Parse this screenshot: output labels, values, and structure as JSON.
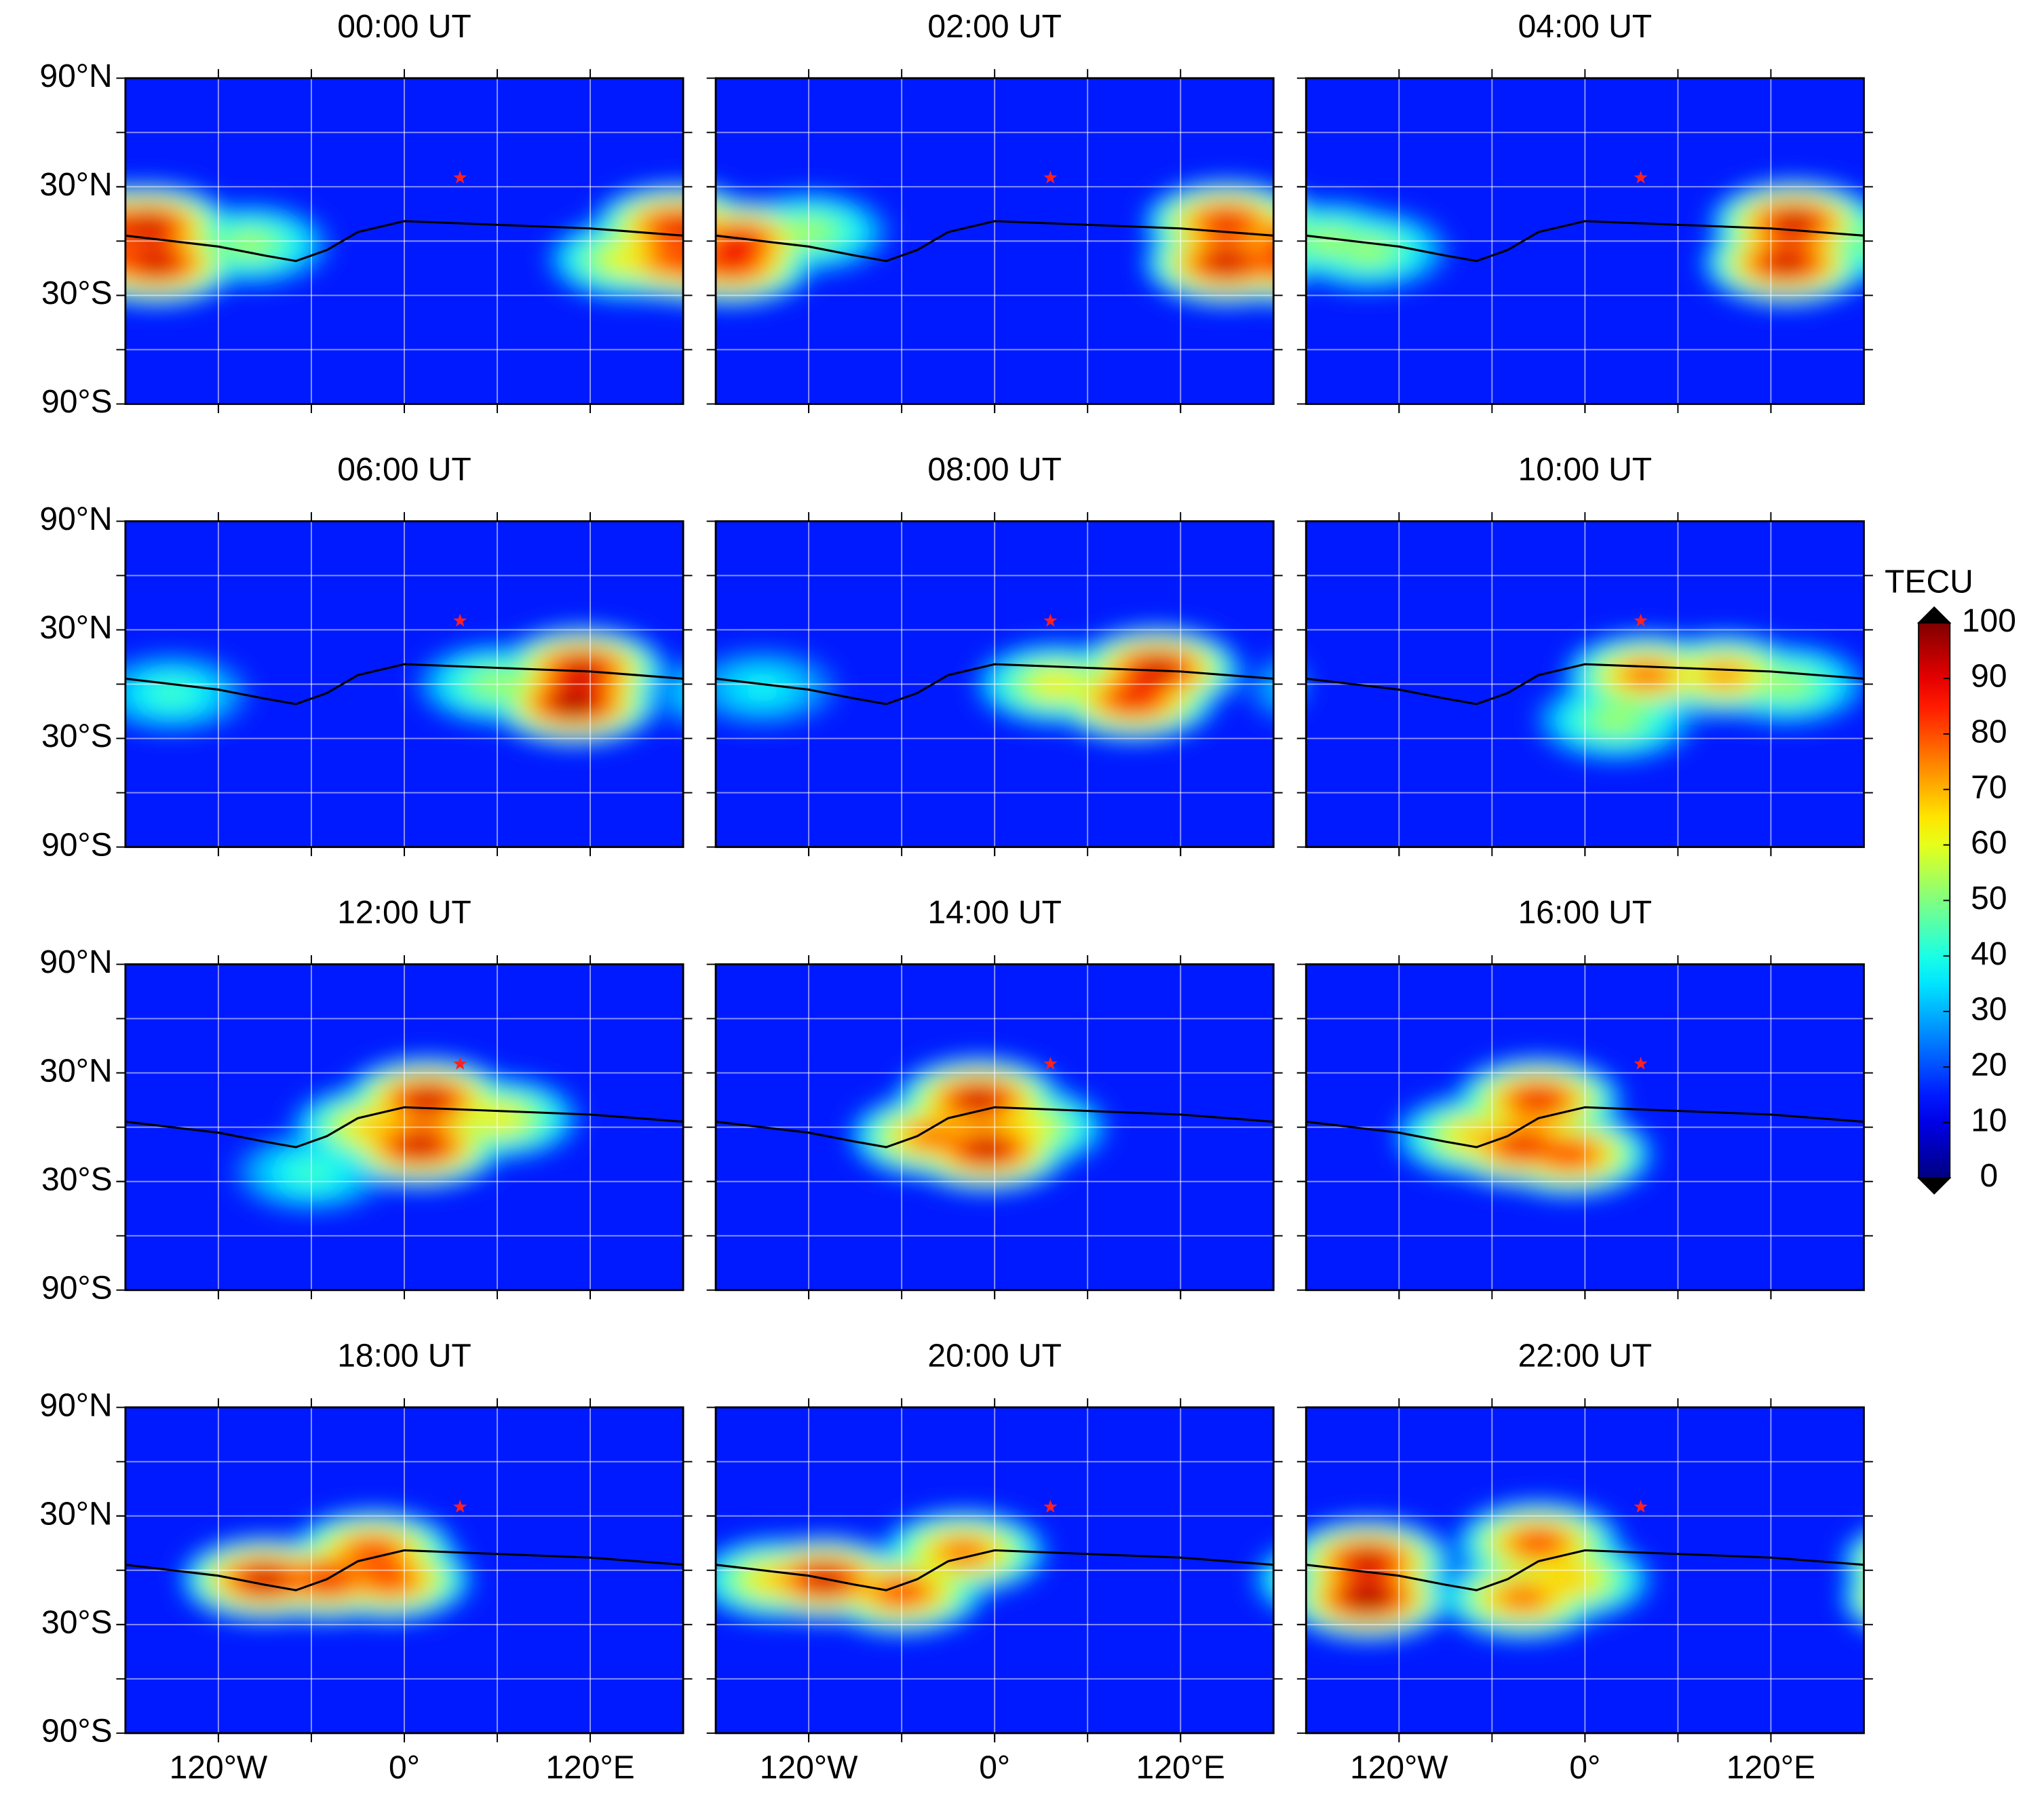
{
  "chart_data": {
    "type": "heatmap-map",
    "xlim": [
      -180,
      180
    ],
    "ylim": [
      -90,
      90
    ],
    "xticks": [
      {
        "value": -120,
        "label": "120°W"
      },
      {
        "value": 0,
        "label": "0°"
      },
      {
        "value": 120,
        "label": "120°E"
      }
    ],
    "yticks": [
      {
        "value": 90,
        "label": "90°N"
      },
      {
        "value": 30,
        "label": "30°N"
      },
      {
        "value": -30,
        "label": "30°S"
      },
      {
        "value": -90,
        "label": "90°S"
      }
    ],
    "grid": true,
    "background_tecu": 15,
    "colorbar": {
      "label": "TECU",
      "lim": [
        0,
        100
      ],
      "ticks": [
        0,
        10,
        20,
        30,
        40,
        50,
        60,
        70,
        80,
        90,
        100
      ],
      "colormap": "jet"
    },
    "event_location": {
      "lon": 36,
      "lat": 35,
      "color": "#ff2020"
    },
    "magnetic_equator": {
      "lon": [
        -180,
        -120,
        -90,
        -70,
        -50,
        -30,
        0,
        60,
        120,
        180
      ],
      "lat": [
        3,
        -3,
        -8,
        -11,
        -5,
        5,
        11,
        9,
        7,
        3
      ]
    },
    "panels": [
      {
        "title": "00:00 UT",
        "peaks": [
          {
            "lon": -165,
            "lat": 8,
            "value": 95
          },
          {
            "lon": -160,
            "lat": -12,
            "value": 95
          },
          {
            "lon": 175,
            "lat": 8,
            "value": 90
          },
          {
            "lon": 175,
            "lat": -10,
            "value": 85
          },
          {
            "lon": -100,
            "lat": -2,
            "value": 55
          },
          {
            "lon": 145,
            "lat": -10,
            "value": 65
          }
        ]
      },
      {
        "title": "02:00 UT",
        "peaks": [
          {
            "lon": -165,
            "lat": 0,
            "value": 90
          },
          {
            "lon": -170,
            "lat": -12,
            "value": 90
          },
          {
            "lon": 150,
            "lat": 10,
            "value": 90
          },
          {
            "lon": 150,
            "lat": -12,
            "value": 95
          },
          {
            "lon": -120,
            "lat": 5,
            "value": 55
          }
        ]
      },
      {
        "title": "04:00 UT",
        "peaks": [
          {
            "lon": 135,
            "lat": 10,
            "value": 95
          },
          {
            "lon": 130,
            "lat": -12,
            "value": 95
          },
          {
            "lon": -165,
            "lat": 0,
            "value": 55
          },
          {
            "lon": -140,
            "lat": -5,
            "value": 55
          }
        ]
      },
      {
        "title": "06:00 UT",
        "peaks": [
          {
            "lon": 115,
            "lat": 8,
            "value": 95
          },
          {
            "lon": 110,
            "lat": -10,
            "value": 100
          },
          {
            "lon": 60,
            "lat": 0,
            "value": 55
          },
          {
            "lon": -150,
            "lat": -5,
            "value": 45
          }
        ]
      },
      {
        "title": "08:00 UT",
        "peaks": [
          {
            "lon": 105,
            "lat": 8,
            "value": 95
          },
          {
            "lon": 90,
            "lat": -8,
            "value": 90
          },
          {
            "lon": 40,
            "lat": 0,
            "value": 65
          },
          {
            "lon": -150,
            "lat": -2,
            "value": 40
          }
        ]
      },
      {
        "title": "10:00 UT",
        "peaks": [
          {
            "lon": 40,
            "lat": 5,
            "value": 80
          },
          {
            "lon": 90,
            "lat": 5,
            "value": 75
          },
          {
            "lon": 20,
            "lat": -20,
            "value": 55
          },
          {
            "lon": 130,
            "lat": 0,
            "value": 55
          }
        ]
      },
      {
        "title": "12:00 UT",
        "peaks": [
          {
            "lon": 15,
            "lat": 15,
            "value": 95
          },
          {
            "lon": 10,
            "lat": -10,
            "value": 95
          },
          {
            "lon": -20,
            "lat": 0,
            "value": 70
          },
          {
            "lon": 60,
            "lat": 5,
            "value": 65
          },
          {
            "lon": -60,
            "lat": -25,
            "value": 45
          }
        ]
      },
      {
        "title": "14:00 UT",
        "peaks": [
          {
            "lon": -10,
            "lat": 15,
            "value": 95
          },
          {
            "lon": -5,
            "lat": -12,
            "value": 95
          },
          {
            "lon": -40,
            "lat": -5,
            "value": 80
          },
          {
            "lon": 20,
            "lat": 0,
            "value": 65
          }
        ]
      },
      {
        "title": "16:00 UT",
        "peaks": [
          {
            "lon": -30,
            "lat": 15,
            "value": 90
          },
          {
            "lon": -40,
            "lat": -10,
            "value": 90
          },
          {
            "lon": -10,
            "lat": -15,
            "value": 85
          },
          {
            "lon": -70,
            "lat": -5,
            "value": 70
          }
        ]
      },
      {
        "title": "18:00 UT",
        "peaks": [
          {
            "lon": -90,
            "lat": -5,
            "value": 95
          },
          {
            "lon": -50,
            "lat": -5,
            "value": 90
          },
          {
            "lon": -20,
            "lat": 10,
            "value": 85
          },
          {
            "lon": -10,
            "lat": -5,
            "value": 85
          }
        ]
      },
      {
        "title": "20:00 UT",
        "peaks": [
          {
            "lon": -110,
            "lat": -5,
            "value": 95
          },
          {
            "lon": -60,
            "lat": -12,
            "value": 85
          },
          {
            "lon": -20,
            "lat": 10,
            "value": 80
          },
          {
            "lon": -140,
            "lat": -5,
            "value": 70
          }
        ]
      },
      {
        "title": "22:00 UT",
        "peaks": [
          {
            "lon": -140,
            "lat": 5,
            "value": 95
          },
          {
            "lon": -140,
            "lat": -15,
            "value": 100
          },
          {
            "lon": -30,
            "lat": 15,
            "value": 85
          },
          {
            "lon": -40,
            "lat": -15,
            "value": 80
          },
          {
            "lon": -10,
            "lat": -5,
            "value": 70
          }
        ]
      }
    ]
  }
}
